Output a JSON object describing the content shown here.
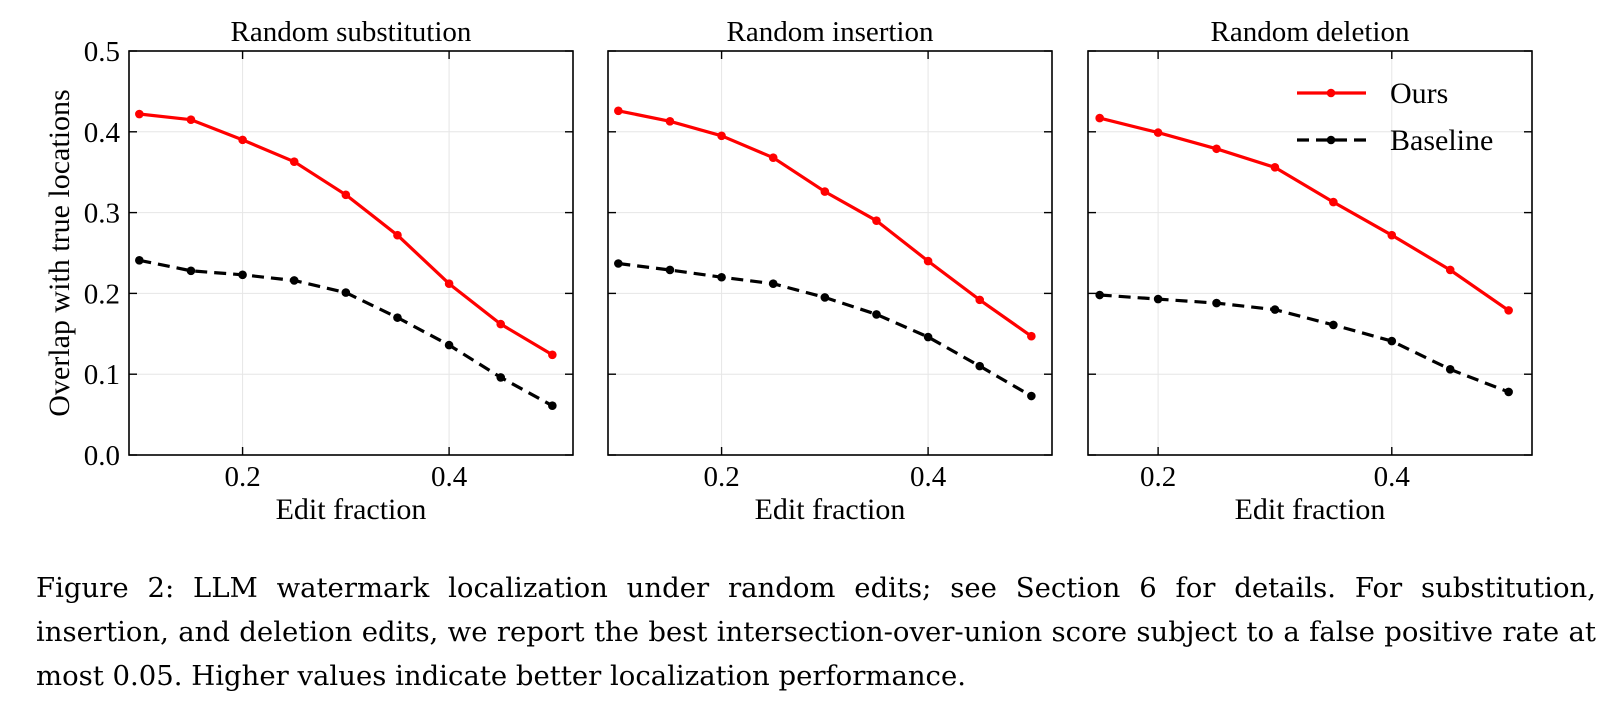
{
  "caption": "Figure 2: LLM watermark localization under random edits; see Section 6 for details. For substitution, insertion, and deletion edits, we report the best intersection-over-union score subject to a false positive rate at most 0.05. Higher values indicate better localization performance.",
  "colors": {
    "ours": "#ff0000",
    "baseline": "#000000",
    "grid": "#e6e6e6"
  },
  "chart_data": [
    {
      "type": "line",
      "title": "Random substitution",
      "xlabel": "Edit fraction",
      "ylabel": "Overlap with true locations",
      "xlim": [
        0.09,
        0.52
      ],
      "ylim": [
        0.0,
        0.5
      ],
      "xticks": [
        {
          "v": 0.2,
          "label": "0.2"
        },
        {
          "v": 0.4,
          "label": "0.4"
        }
      ],
      "yticks": [
        {
          "v": 0.0,
          "label": "0.0"
        },
        {
          "v": 0.1,
          "label": "0.1"
        },
        {
          "v": 0.2,
          "label": "0.2"
        },
        {
          "v": 0.3,
          "label": "0.3"
        },
        {
          "v": 0.4,
          "label": "0.4"
        },
        {
          "v": 0.5,
          "label": "0.5"
        }
      ],
      "show_ytick_labels": true,
      "grid": true,
      "series": [
        {
          "name": "Ours",
          "style": "solid",
          "x": [
            0.1,
            0.15,
            0.2,
            0.25,
            0.3,
            0.35,
            0.4,
            0.45,
            0.5
          ],
          "y": [
            0.422,
            0.415,
            0.39,
            0.363,
            0.322,
            0.272,
            0.212,
            0.162,
            0.124
          ]
        },
        {
          "name": "Baseline",
          "style": "dashed",
          "x": [
            0.1,
            0.15,
            0.2,
            0.25,
            0.3,
            0.35,
            0.4,
            0.45,
            0.5
          ],
          "y": [
            0.241,
            0.228,
            0.223,
            0.216,
            0.201,
            0.17,
            0.136,
            0.096,
            0.061
          ]
        }
      ]
    },
    {
      "type": "line",
      "title": "Random insertion",
      "xlabel": "Edit fraction",
      "ylabel": "",
      "xlim": [
        0.09,
        0.52
      ],
      "ylim": [
        0.0,
        0.5
      ],
      "xticks": [
        {
          "v": 0.2,
          "label": "0.2"
        },
        {
          "v": 0.4,
          "label": "0.4"
        }
      ],
      "yticks": [
        {
          "v": 0.0,
          "label": "0.0"
        },
        {
          "v": 0.1,
          "label": "0.1"
        },
        {
          "v": 0.2,
          "label": "0.2"
        },
        {
          "v": 0.3,
          "label": "0.3"
        },
        {
          "v": 0.4,
          "label": "0.4"
        },
        {
          "v": 0.5,
          "label": "0.5"
        }
      ],
      "show_ytick_labels": false,
      "grid": true,
      "series": [
        {
          "name": "Ours",
          "style": "solid",
          "x": [
            0.1,
            0.15,
            0.2,
            0.25,
            0.3,
            0.35,
            0.4,
            0.45,
            0.5
          ],
          "y": [
            0.426,
            0.413,
            0.395,
            0.368,
            0.326,
            0.29,
            0.24,
            0.192,
            0.147
          ]
        },
        {
          "name": "Baseline",
          "style": "dashed",
          "x": [
            0.1,
            0.15,
            0.2,
            0.25,
            0.3,
            0.35,
            0.4,
            0.45,
            0.5
          ],
          "y": [
            0.237,
            0.229,
            0.22,
            0.212,
            0.195,
            0.174,
            0.146,
            0.11,
            0.073
          ]
        }
      ]
    },
    {
      "type": "line",
      "title": "Random deletion",
      "xlabel": "Edit fraction",
      "ylabel": "",
      "xlim": [
        0.14,
        0.52
      ],
      "ylim": [
        0.0,
        0.5
      ],
      "xticks": [
        {
          "v": 0.2,
          "label": "0.2"
        },
        {
          "v": 0.4,
          "label": "0.4"
        }
      ],
      "yticks": [
        {
          "v": 0.0,
          "label": "0.0"
        },
        {
          "v": 0.1,
          "label": "0.1"
        },
        {
          "v": 0.2,
          "label": "0.2"
        },
        {
          "v": 0.3,
          "label": "0.3"
        },
        {
          "v": 0.4,
          "label": "0.4"
        },
        {
          "v": 0.5,
          "label": "0.5"
        }
      ],
      "show_ytick_labels": false,
      "grid": true,
      "legend": "top-right",
      "series": [
        {
          "name": "Ours",
          "style": "solid",
          "x": [
            0.15,
            0.2,
            0.25,
            0.3,
            0.35,
            0.4,
            0.45,
            0.5
          ],
          "y": [
            0.417,
            0.399,
            0.379,
            0.356,
            0.313,
            0.272,
            0.229,
            0.179
          ]
        },
        {
          "name": "Baseline",
          "style": "dashed",
          "x": [
            0.15,
            0.2,
            0.25,
            0.3,
            0.35,
            0.4,
            0.45,
            0.5
          ],
          "y": [
            0.198,
            0.193,
            0.188,
            0.18,
            0.161,
            0.141,
            0.106,
            0.078
          ]
        }
      ]
    }
  ]
}
